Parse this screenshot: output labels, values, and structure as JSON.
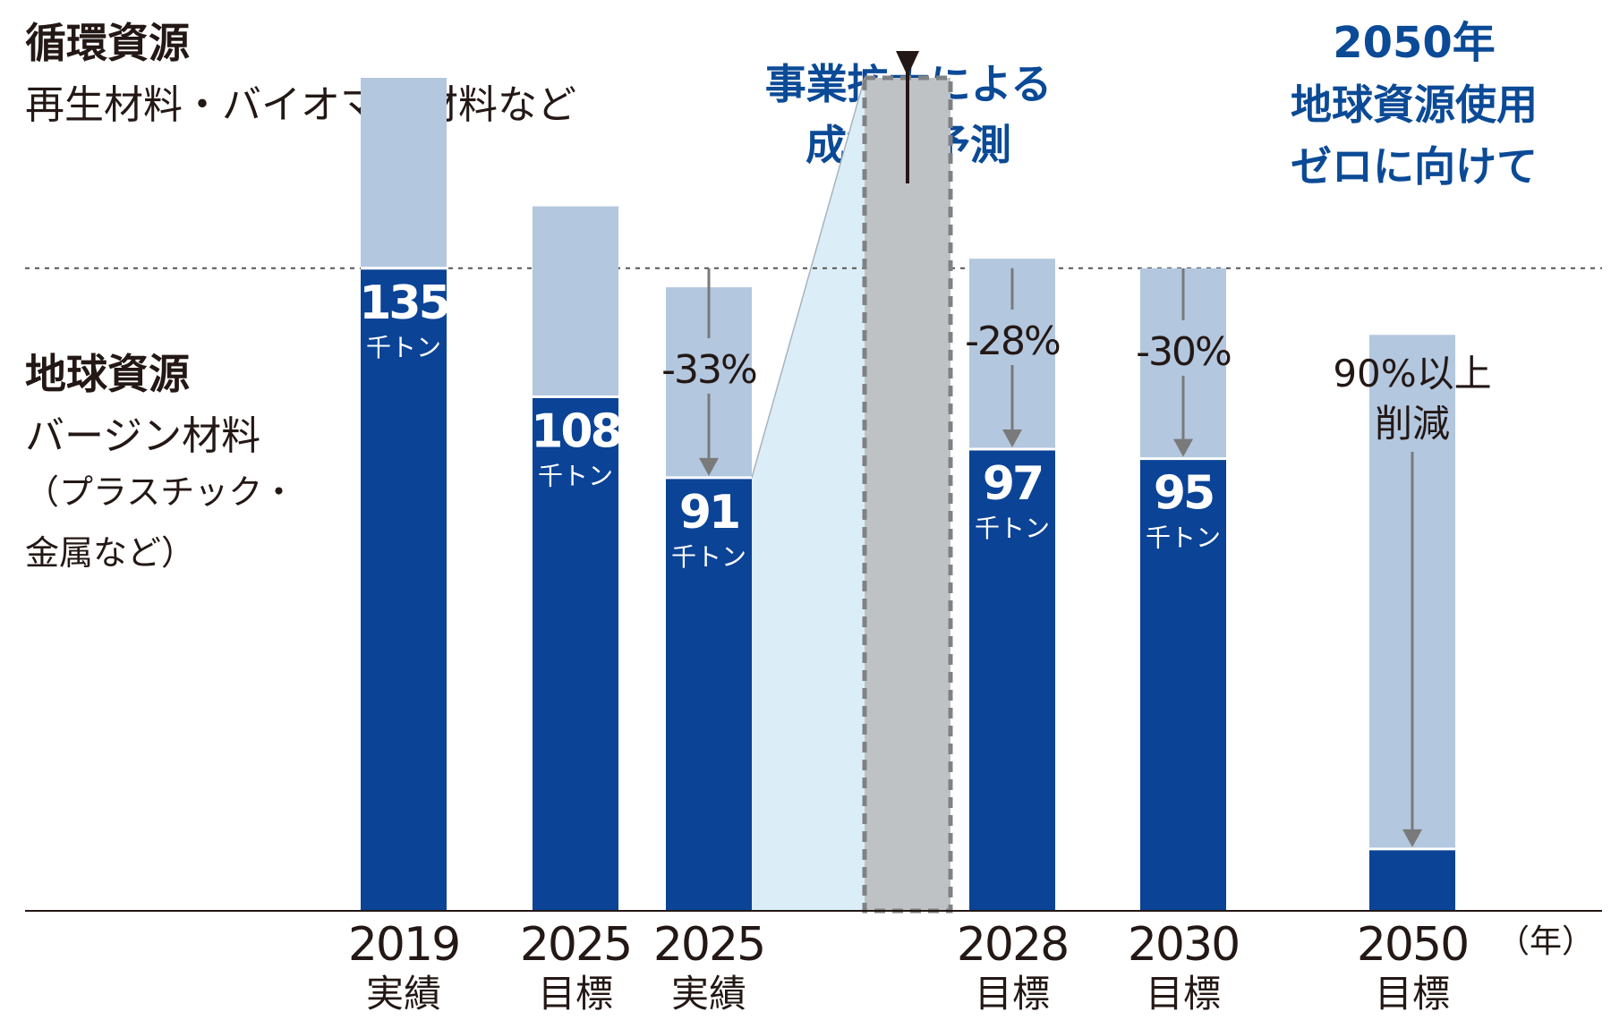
{
  "colors": {
    "virgin": "#0b4396",
    "circular": "#b3c7df",
    "forecast_fill": "#bfc2c5",
    "forecast_border": "#7f8285",
    "expansion_band": "#dbeef7",
    "heading_blue": "#0b4a96",
    "text": "#231815",
    "arrow_gray": "#7a7a7a"
  },
  "legend": {
    "circular_title": "循環資源",
    "circular_desc": "再生材料・バイオマス材料など",
    "virgin_title": "地球資源",
    "virgin_desc_1": "バージン材料",
    "virgin_desc_2": "（プラスチック・",
    "virgin_desc_3": "金属など）"
  },
  "annotations": {
    "forecast_1": "事業拡大による",
    "forecast_2": "成行き予測",
    "goal_1": "2050年",
    "goal_2": "地球資源使用",
    "goal_3": "ゼロに向けて",
    "reduction_2050_1": "90%以上",
    "reduction_2050_2": "削減"
  },
  "chart_data": {
    "type": "bar",
    "unit": "千トン",
    "year_unit_label": "（年）",
    "categories": [
      {
        "year": "2019",
        "label": "実績"
      },
      {
        "year": "2025",
        "label": "目標"
      },
      {
        "year": "2025",
        "label": "実績"
      },
      {
        "year": "",
        "label": ""
      },
      {
        "year": "2028",
        "label": "目標"
      },
      {
        "year": "2030",
        "label": "目標"
      },
      {
        "year": "2050",
        "label": "目標"
      }
    ],
    "series": [
      {
        "name": "地球資源",
        "values": [
          135,
          108,
          91,
          null,
          97,
          95,
          13
        ]
      },
      {
        "name": "循環資源",
        "values": [
          40,
          40,
          40,
          null,
          40,
          40,
          108
        ]
      }
    ],
    "value_labels": [
      "135",
      "108",
      "91",
      "",
      "97",
      "95",
      ""
    ],
    "unit_labels": [
      "千トン",
      "千トン",
      "千トン",
      "",
      "千トン",
      "千トン",
      ""
    ],
    "forecast_total": 175,
    "baseline_total": 135,
    "reductions": [
      {
        "bar": 2,
        "text": "-33%"
      },
      {
        "bar": 4,
        "text": "-28%"
      },
      {
        "bar": 5,
        "text": "-30%"
      },
      {
        "bar": 6,
        "text": "90%以上削減"
      }
    ],
    "ylim": [
      0,
      175
    ]
  }
}
